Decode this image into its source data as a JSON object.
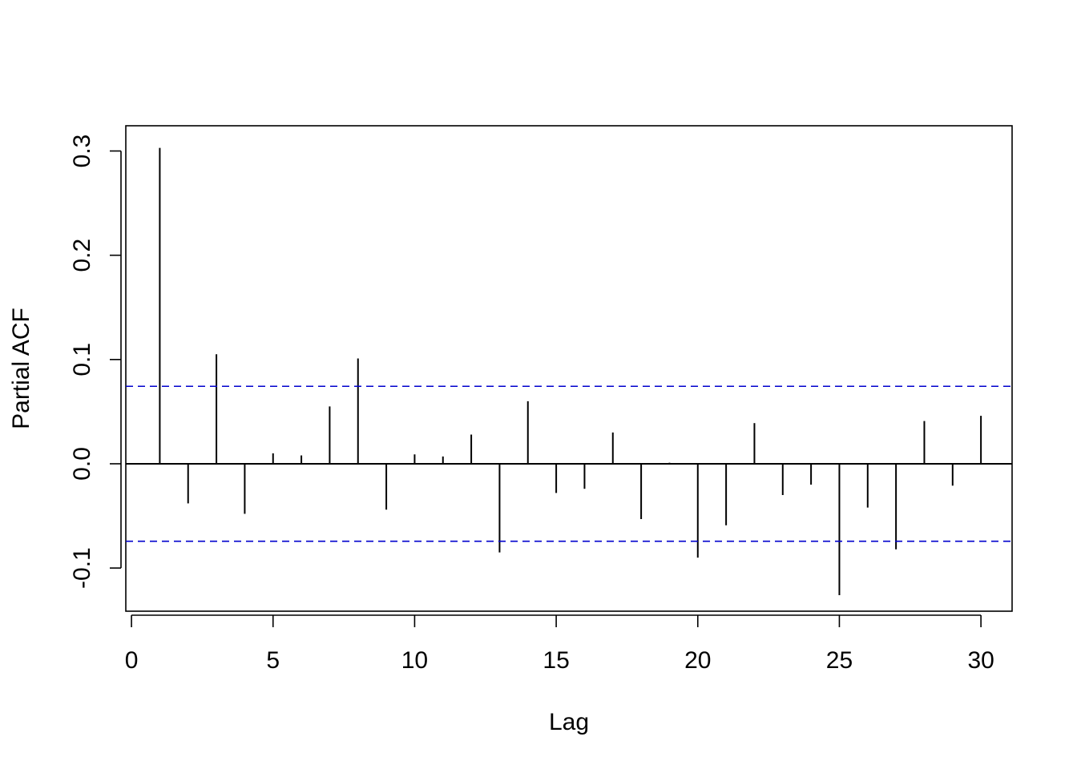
{
  "chart_data": {
    "type": "bar",
    "title": "",
    "xlabel": "Lag",
    "ylabel": "Partial ACF",
    "xlim": [
      -0.2,
      31.1
    ],
    "ylim": [
      -0.1414,
      0.3242
    ],
    "x_ticks": [
      0,
      5,
      10,
      15,
      20,
      25,
      30
    ],
    "y_ticks": [
      -0.1,
      0.0,
      0.1,
      0.2,
      0.3
    ],
    "y_tick_labels": [
      "-0.1",
      "0.0",
      "0.1",
      "0.2",
      "0.3"
    ],
    "x_tick_labels": [
      "0",
      "5",
      "10",
      "15",
      "20",
      "25",
      "30"
    ],
    "lags": [
      1,
      2,
      3,
      4,
      5,
      6,
      7,
      8,
      9,
      10,
      11,
      12,
      13,
      14,
      15,
      16,
      17,
      18,
      19,
      20,
      21,
      22,
      23,
      24,
      25,
      26,
      27,
      28,
      29,
      30
    ],
    "values": [
      0.303,
      -0.038,
      0.105,
      -0.048,
      0.01,
      0.008,
      0.055,
      0.101,
      -0.044,
      0.009,
      0.007,
      0.028,
      -0.085,
      0.06,
      -0.028,
      -0.024,
      0.03,
      -0.053,
      0.001,
      -0.09,
      -0.059,
      0.039,
      -0.03,
      -0.02,
      -0.126,
      -0.042,
      -0.082,
      0.041,
      -0.021,
      0.046
    ],
    "confidence_bound": 0.0743,
    "bar_color": "#000000",
    "bound_color": "#0000cd",
    "grid": false,
    "legend": "none"
  }
}
